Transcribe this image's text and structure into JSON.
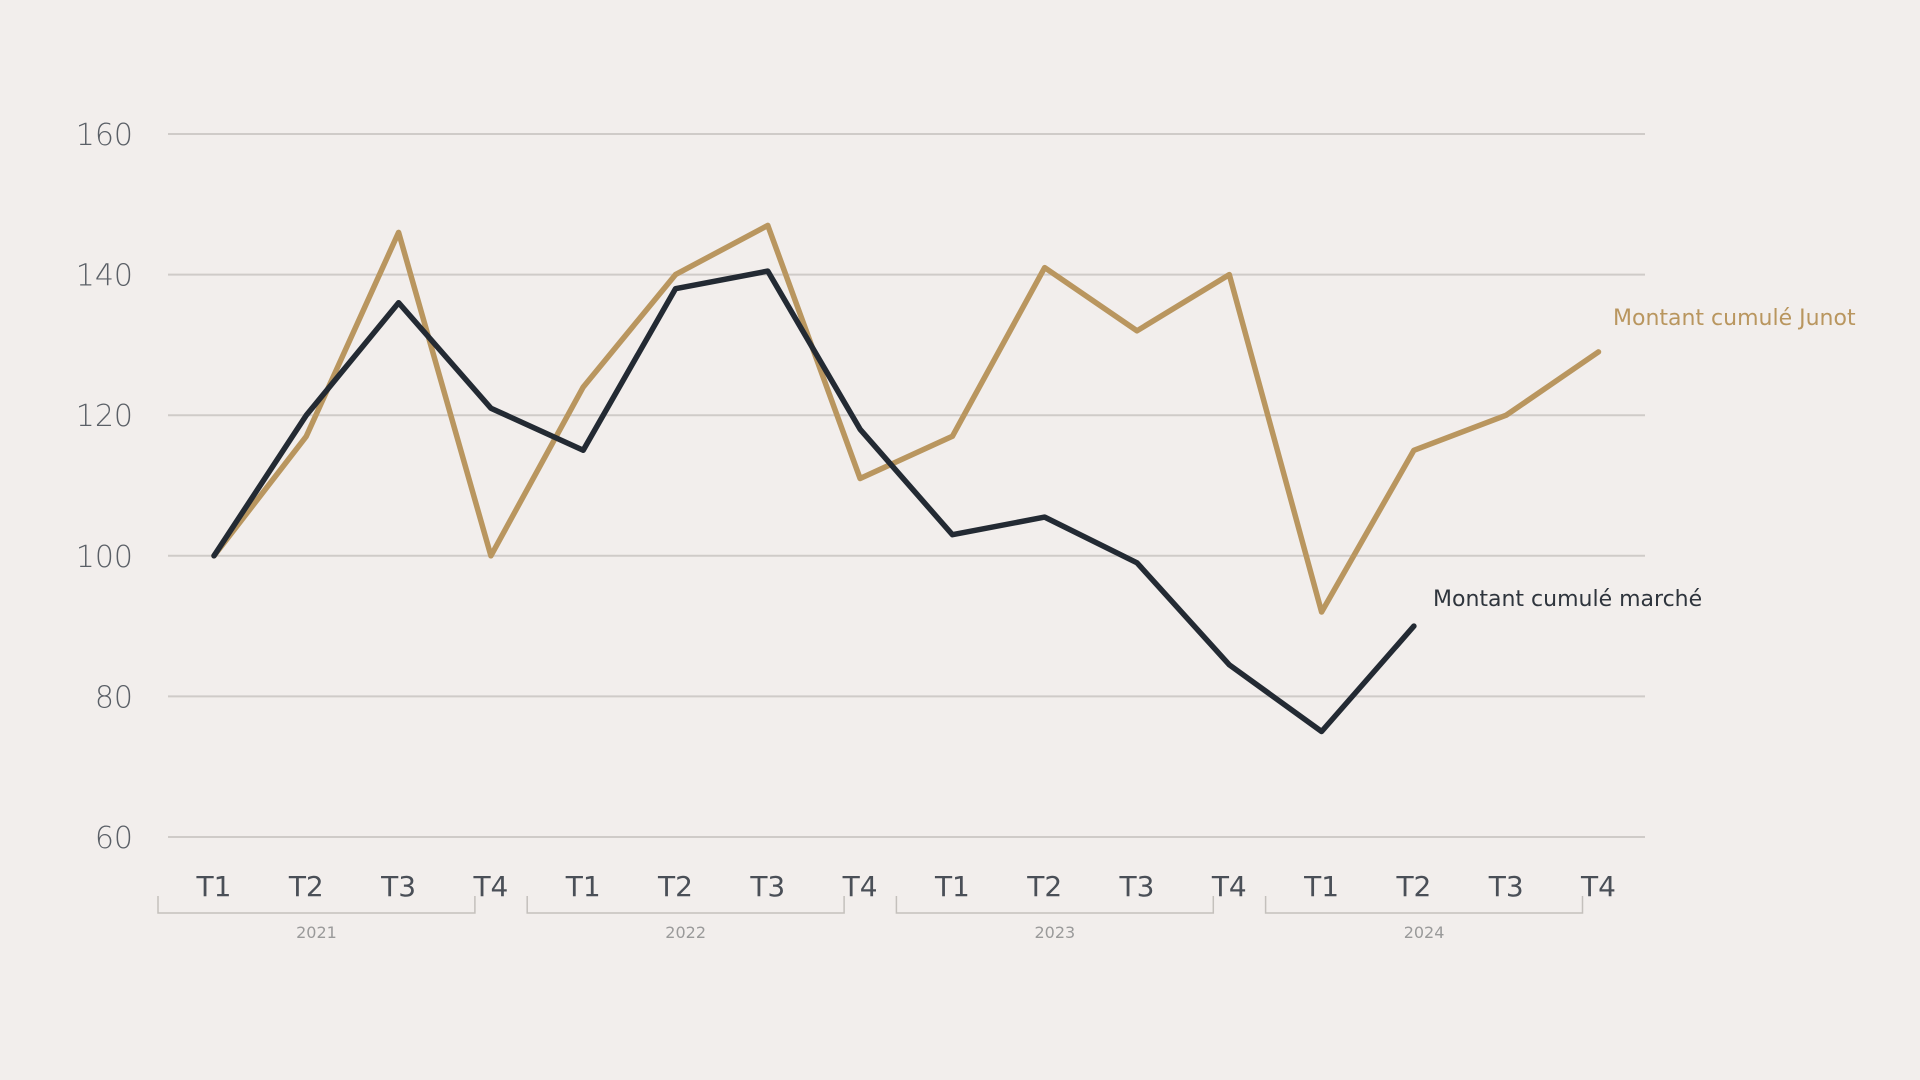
{
  "chart_data": {
    "type": "line",
    "title": "",
    "xlabel": "",
    "ylabel": "",
    "ylim": [
      60,
      160
    ],
    "yticks": [
      60,
      80,
      100,
      120,
      140,
      160
    ],
    "grid": true,
    "categories": [
      "T1",
      "T2",
      "T3",
      "T4",
      "T1",
      "T2",
      "T3",
      "T4",
      "T1",
      "T2",
      "T3",
      "T4",
      "T1",
      "T2",
      "T3",
      "T4"
    ],
    "year_groups": [
      {
        "label": "2021",
        "start": 0,
        "end": 3
      },
      {
        "label": "2022",
        "start": 4,
        "end": 7
      },
      {
        "label": "2023",
        "start": 8,
        "end": 11
      },
      {
        "label": "2024",
        "start": 12,
        "end": 15
      }
    ],
    "series": [
      {
        "name": "Montant cumulé Junot",
        "color": "#b9965f",
        "values": [
          100,
          117,
          146,
          100,
          124,
          140,
          147,
          111,
          117,
          141,
          132,
          140,
          92,
          115,
          120,
          129
        ]
      },
      {
        "name": "Montant cumulé marché",
        "color": "#232a33",
        "values": [
          100,
          120,
          136,
          121,
          115,
          138,
          140.5,
          118,
          103,
          105.5,
          99,
          84.5,
          75,
          90,
          null,
          null
        ]
      }
    ]
  }
}
